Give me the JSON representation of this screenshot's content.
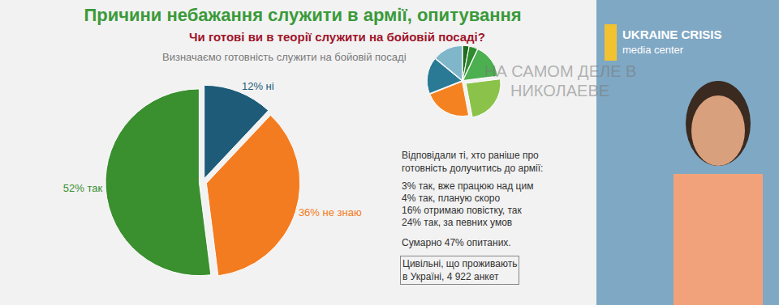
{
  "chart_data": [
    {
      "type": "pie",
      "title": "Причини небажання служити в армії, опитування",
      "subtitle": "Чи готові ви в теорії служити на бойовій посаді?",
      "annotations": {
        "caption": "Визначаємо готовність служити на бойовій посаді",
        "note_heading": [
          "Відповідали ті, хто раніше про",
          "готовність долучитись до армії:"
        ],
        "note_items": [
          "3% так, вже працюю над цим",
          "4% так, планую скоро",
          "16% отримаю повістку, так",
          "24% так, за певних умов"
        ],
        "note_total": "Сумарно 47% опитаних.",
        "note_source": [
          "Цивільні, що проживають",
          "в Україні, 4 922 анкет"
        ]
      },
      "categories": [
        "ні",
        "не знаю",
        "так"
      ],
      "values": [
        12,
        36,
        52
      ],
      "value_labels": [
        "12% ні",
        "36% не знаю",
        "52% так"
      ],
      "colors": [
        "#1d5b78",
        "#f47c20",
        "#3a8f2f"
      ],
      "data_labels": true
    },
    {
      "type": "pie",
      "values": [
        3,
        4,
        16,
        24,
        22,
        17,
        14
      ],
      "colors": [
        "#1f6b1f",
        "#2e8b2e",
        "#4caf50",
        "#8bc34a",
        "#f58220",
        "#2a7a96",
        "#7fb6c9"
      ],
      "data_labels": false
    }
  ],
  "watermark": [
    "НА САМОМ ДЕЛЕ В",
    "НИКОЛАЕВЕ"
  ],
  "logo": [
    "UKRAINE CRISIS",
    "media center"
  ]
}
